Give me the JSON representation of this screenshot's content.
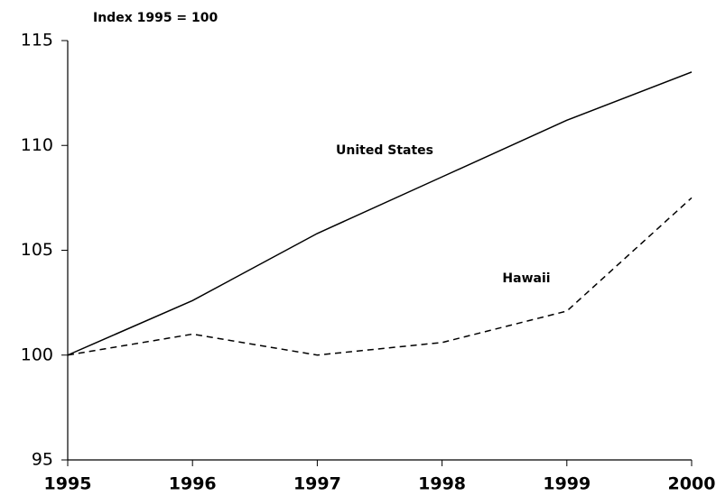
{
  "chart_data": {
    "type": "line",
    "y_label": "Index 1995 = 100",
    "x": [
      1995,
      1996,
      1997,
      1998,
      1999,
      2000
    ],
    "series": [
      {
        "name": "United States",
        "color": "#000000",
        "dash": "solid",
        "values": [
          100,
          102.6,
          105.8,
          108.5,
          111.2,
          113.5
        ]
      },
      {
        "name": "Hawaii",
        "color": "#000000",
        "dash": "dashed",
        "values": [
          100,
          101.0,
          100,
          100.6,
          102.1,
          107.5
        ]
      }
    ],
    "xlim": [
      1995,
      2000
    ],
    "xticks": [
      1995,
      1996,
      1997,
      1998,
      1999,
      2000
    ],
    "ylim": [
      95,
      115
    ],
    "yticks": [
      95,
      100,
      105,
      110,
      115
    ],
    "grid": false
  }
}
